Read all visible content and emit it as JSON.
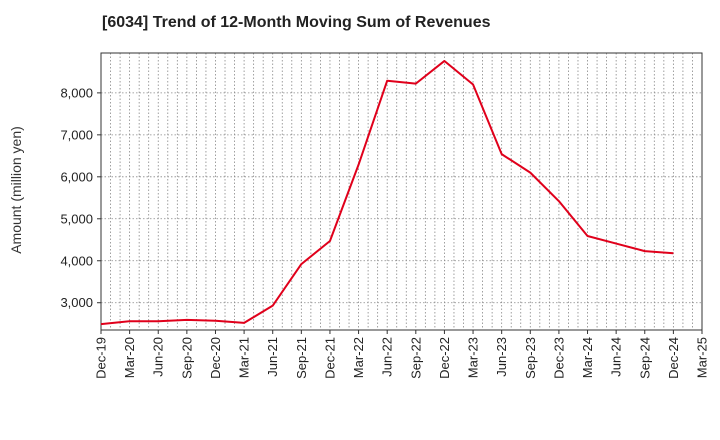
{
  "title": "[6034]  Trend of 12-Month Moving Sum of Revenues",
  "chart_data": {
    "type": "line",
    "title": "[6034]  Trend of 12-Month Moving Sum of Revenues",
    "xlabel": "",
    "ylabel": "Amount (million yen)",
    "ylim": [
      2350,
      8950
    ],
    "yticks": [
      3000,
      4000,
      5000,
      6000,
      7000,
      8000
    ],
    "ytick_labels": [
      "3,000",
      "4,000",
      "5,000",
      "6,000",
      "7,000",
      "8,000"
    ],
    "x_categories": [
      "Dec-19",
      "Mar-20",
      "Jun-20",
      "Sep-20",
      "Dec-20",
      "Mar-21",
      "Jun-21",
      "Sep-21",
      "Dec-21",
      "Mar-22",
      "Jun-22",
      "Sep-22",
      "Dec-22",
      "Mar-23",
      "Jun-23",
      "Sep-23",
      "Dec-23",
      "Mar-24",
      "Jun-24",
      "Sep-24",
      "Dec-24",
      "Mar-25"
    ],
    "grid": true,
    "series": [
      {
        "color": "#e0001b",
        "x": [
          "Dec-19",
          "Mar-20",
          "Jun-20",
          "Sep-20",
          "Dec-20",
          "Mar-21",
          "Jun-21",
          "Sep-21",
          "Dec-21",
          "Mar-22",
          "Jun-22",
          "Sep-22",
          "Dec-22",
          "Mar-23",
          "Jun-23",
          "Sep-23",
          "Dec-23",
          "Mar-24",
          "Jun-24",
          "Sep-24",
          "Dec-24"
        ],
        "values": [
          2490,
          2560,
          2560,
          2590,
          2570,
          2520,
          2930,
          3920,
          4470,
          6290,
          8290,
          8220,
          8760,
          8200,
          6540,
          6100,
          5420,
          4590,
          4410,
          4230,
          4180
        ]
      }
    ]
  }
}
